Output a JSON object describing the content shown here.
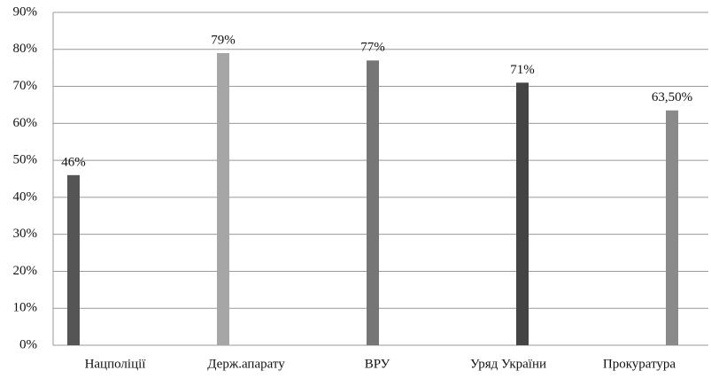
{
  "chart_data": {
    "type": "bar",
    "categories": [
      "Нацполіції",
      "Держ.апарату",
      "ВРУ",
      "Уряд України",
      "Прокуратура"
    ],
    "values": [
      46,
      79,
      77,
      71,
      63.5
    ],
    "value_labels": [
      "46%",
      "79%",
      "77%",
      "71%",
      "63,50%"
    ],
    "colors": [
      "#555555",
      "#a6a6a6",
      "#767676",
      "#444444",
      "#8a8a8a"
    ],
    "ylim": [
      0,
      90
    ],
    "yticks": [
      {
        "value": 0,
        "label": "0%"
      },
      {
        "value": 10,
        "label": "10%"
      },
      {
        "value": 20,
        "label": "20%"
      },
      {
        "value": 30,
        "label": "30%"
      },
      {
        "value": 40,
        "label": "40%"
      },
      {
        "value": 50,
        "label": "50%"
      },
      {
        "value": 60,
        "label": "60%"
      },
      {
        "value": 70,
        "label": "70%"
      },
      {
        "value": 80,
        "label": "80%"
      },
      {
        "value": 90,
        "label": "90%"
      }
    ],
    "grid": true
  }
}
